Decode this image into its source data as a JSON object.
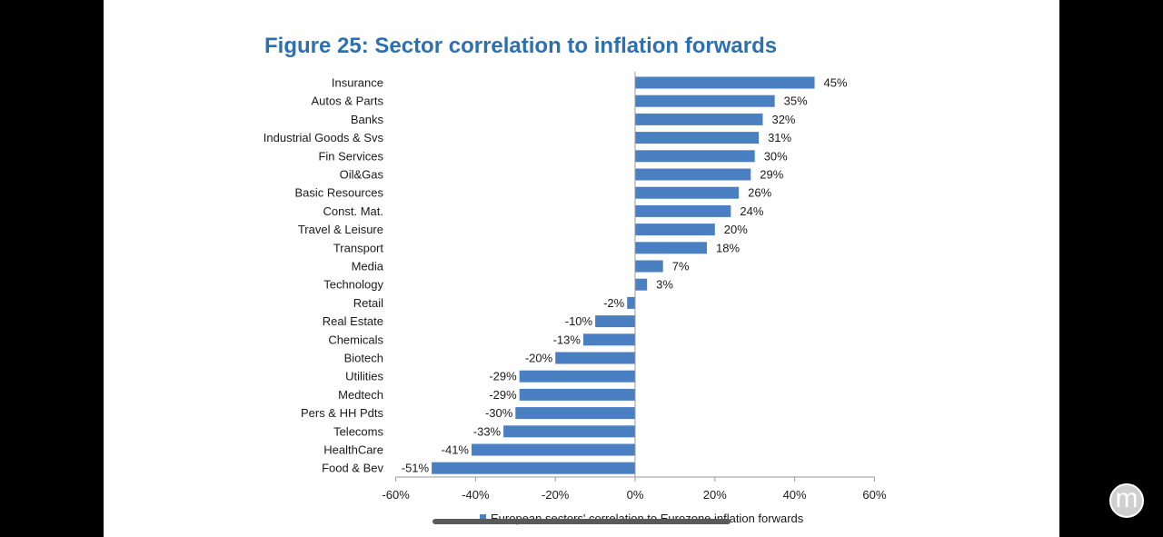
{
  "chart_data": {
    "type": "bar",
    "orientation": "horizontal",
    "title": "Figure 25: Sector correlation to inflation forwards",
    "categories": [
      "Insurance",
      "Autos & Parts",
      "Banks",
      "Industrial Goods & Svs",
      "Fin Services",
      "Oil&Gas",
      "Basic Resources",
      "Const. Mat.",
      "Travel & Leisure",
      "Transport",
      "Media",
      "Technology",
      "Retail",
      "Real Estate",
      "Chemicals",
      "Biotech",
      "Utilities",
      "Medtech",
      "Pers & HH Pdts",
      "Telecoms",
      "HealthCare",
      "Food & Bev"
    ],
    "series": [
      {
        "name": "European sectors' correlation to Eurozone inflation forwards",
        "values": [
          45,
          35,
          32,
          31,
          30,
          29,
          26,
          24,
          20,
          18,
          7,
          3,
          -2,
          -10,
          -13,
          -20,
          -29,
          -29,
          -30,
          -33,
          -41,
          -51
        ],
        "value_labels": [
          "45%",
          "35%",
          "32%",
          "31%",
          "30%",
          "29%",
          "26%",
          "24%",
          "20%",
          "18%",
          "7%",
          "3%",
          "-2%",
          "-10%",
          "-13%",
          "-20%",
          "-29%",
          "-29%",
          "-30%",
          "-33%",
          "-41%",
          "-51%"
        ],
        "color": "#4a7fc1"
      }
    ],
    "xlim": [
      -60,
      60
    ],
    "xticks": [
      -60,
      -40,
      -20,
      0,
      20,
      40,
      60
    ],
    "xtick_labels": [
      "-60%",
      "-40%",
      "-20%",
      "0%",
      "20%",
      "40%",
      "60%"
    ],
    "grid": false,
    "legend_position": "bottom"
  },
  "colors": {
    "title": "#2e6fb2",
    "bar": "#4a7fc1",
    "axis": "#9a9a9a",
    "background": "#ffffff",
    "frame": "#000000"
  },
  "overlay": {
    "logo_letter": "m",
    "logo_icon": "m-logo-icon"
  }
}
